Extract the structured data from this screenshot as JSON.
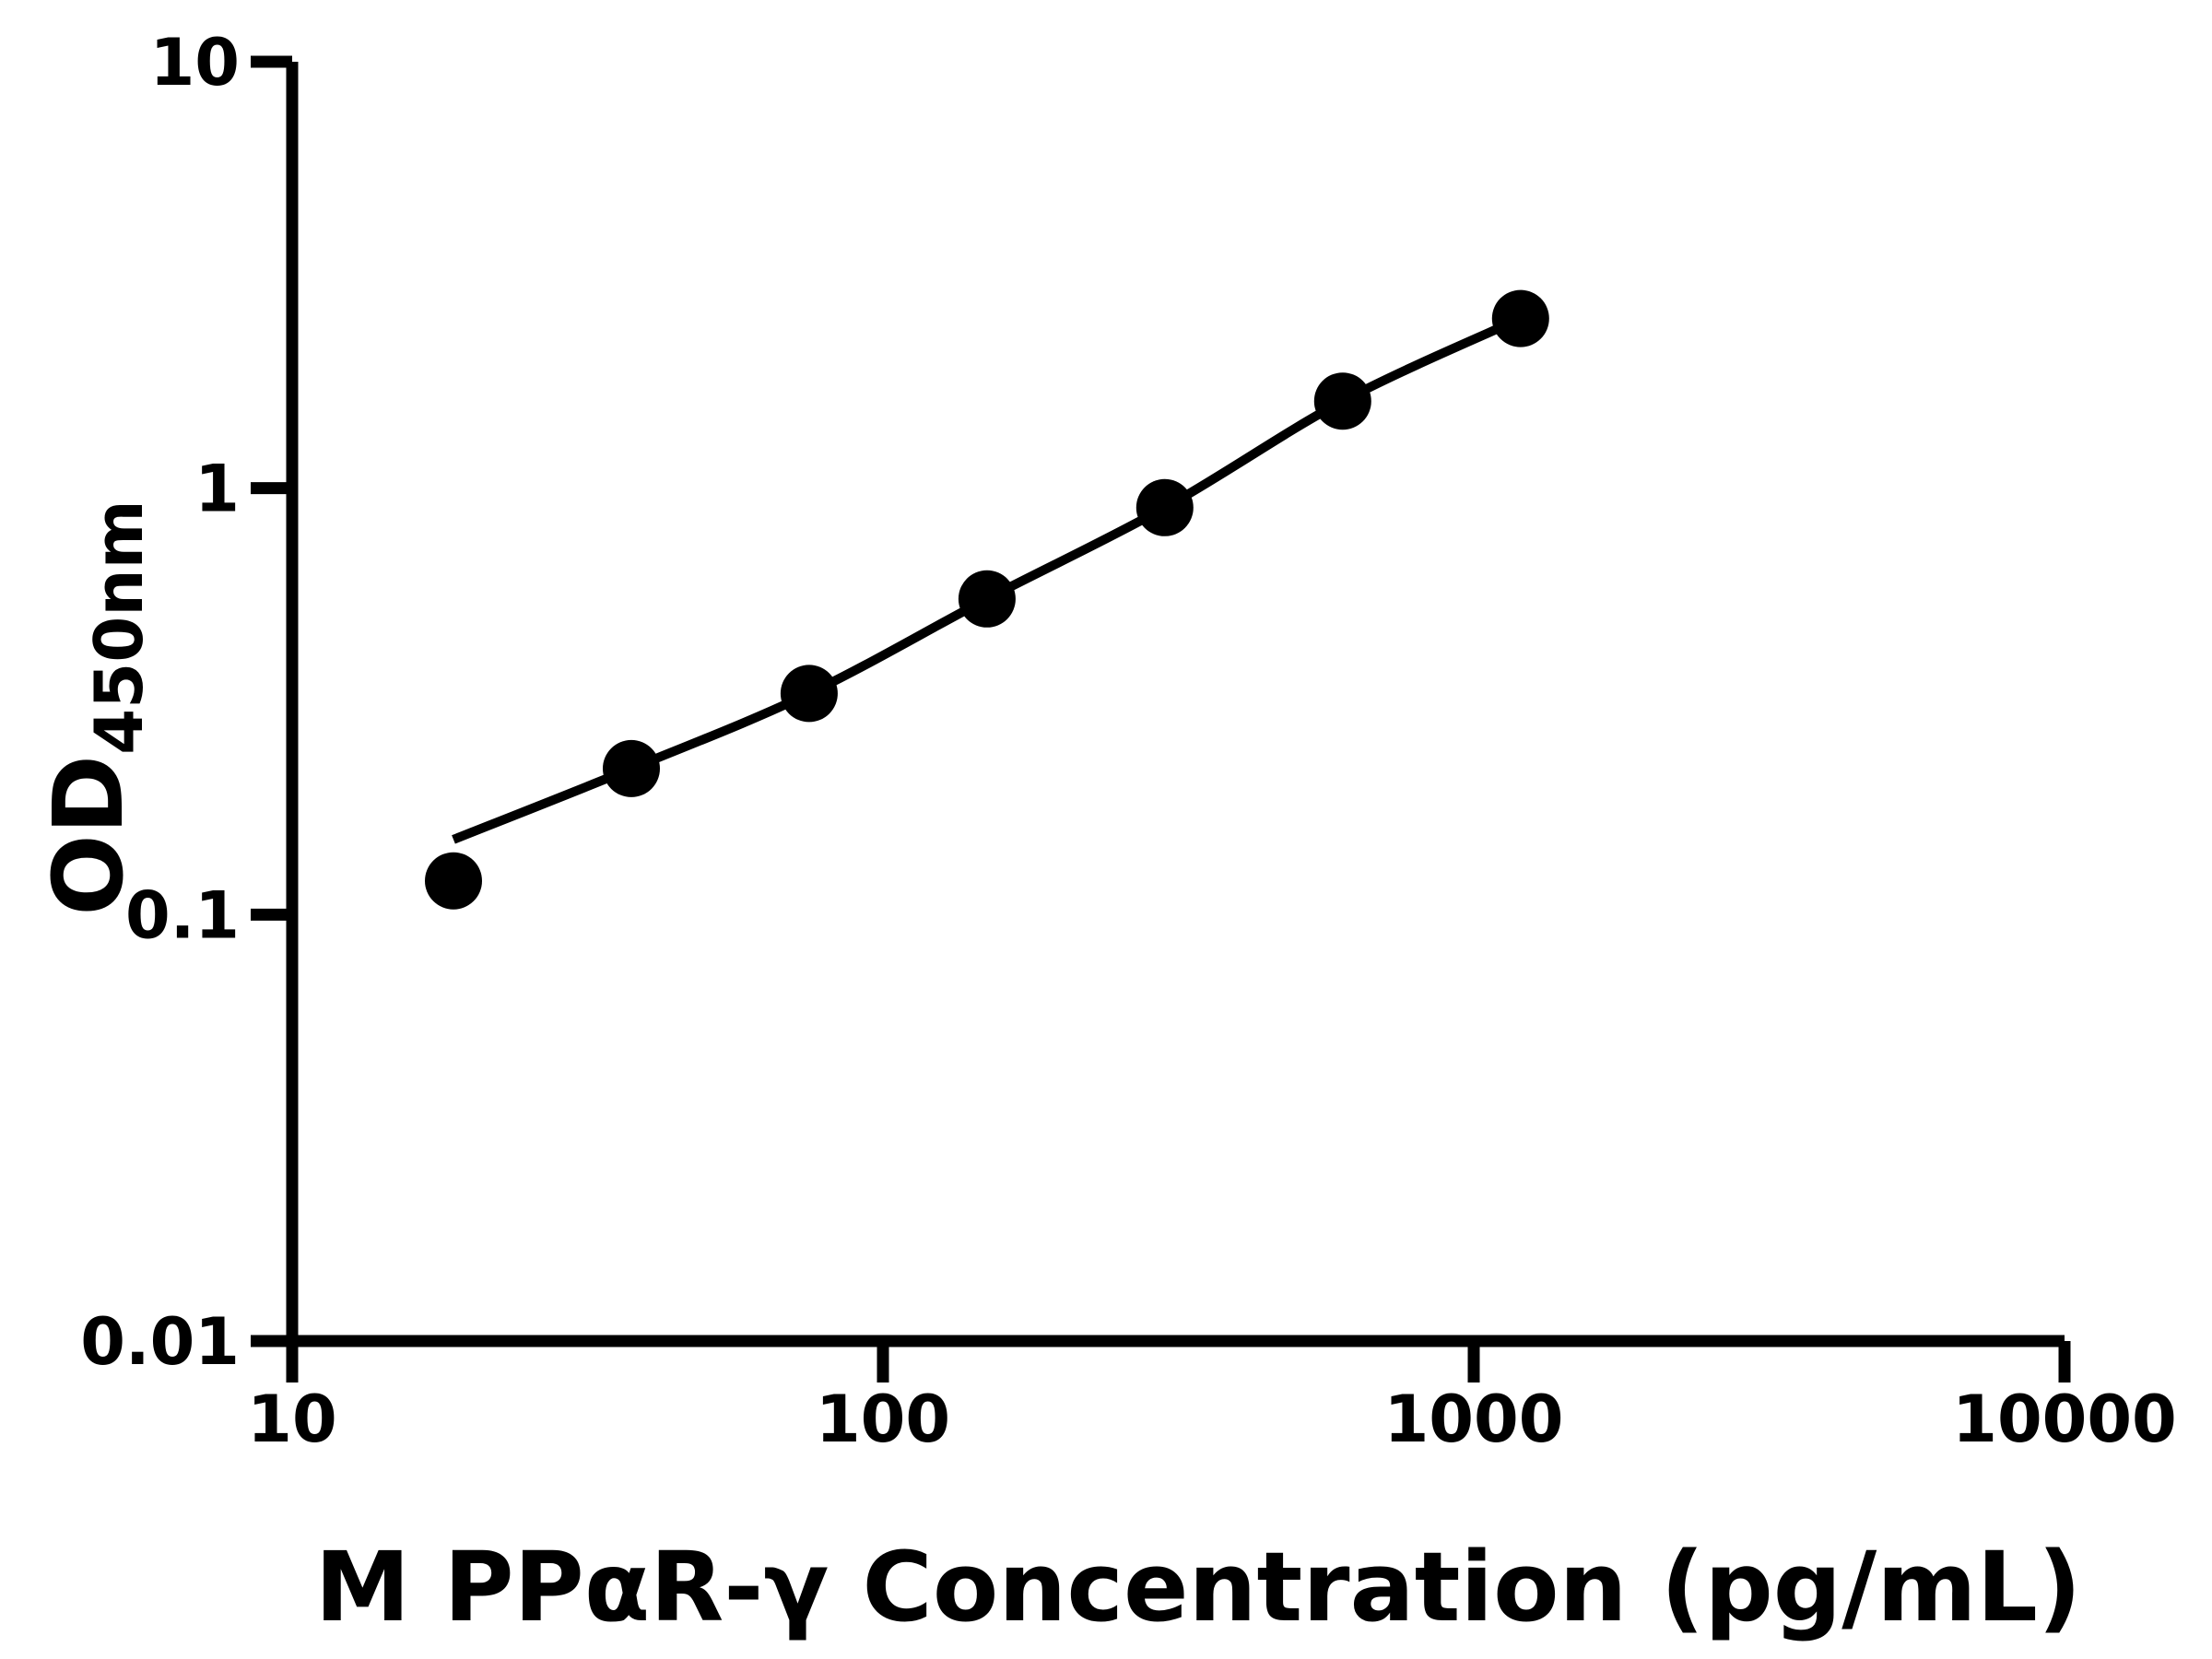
{
  "figure": {
    "background": "#ffffff",
    "axis_color": "#000000",
    "curve_color": "#000000",
    "marker_color": "#000000"
  },
  "chart_data": {
    "type": "scatter",
    "subtype": "line-through-points",
    "title": "",
    "xlabel": "M PPαR-γ Concentration (pg/mL)",
    "ylabel": "OD450nm",
    "ylabel_main": "OD",
    "ylabel_sub": "450nm",
    "x_scale": "log",
    "y_scale": "log",
    "xlim": [
      10,
      10000
    ],
    "ylim": [
      0.01,
      10
    ],
    "x_tick_labels": [
      "10",
      "100",
      "1000",
      "10000"
    ],
    "y_tick_labels": [
      "0.01",
      "0.1",
      "1",
      "10"
    ],
    "grid": false,
    "legend_position": "none",
    "points": [
      {
        "x": 18.75,
        "y": 0.12
      },
      {
        "x": 37.5,
        "y": 0.22
      },
      {
        "x": 75,
        "y": 0.33
      },
      {
        "x": 150,
        "y": 0.55
      },
      {
        "x": 300,
        "y": 0.9
      },
      {
        "x": 600,
        "y": 1.6
      },
      {
        "x": 1200,
        "y": 2.5
      }
    ],
    "fit_curve_anchors": [
      {
        "x": 18.75,
        "y": 0.15
      },
      {
        "x": 37.5,
        "y": 0.22
      },
      {
        "x": 75,
        "y": 0.33
      },
      {
        "x": 150,
        "y": 0.55
      },
      {
        "x": 300,
        "y": 0.9
      },
      {
        "x": 600,
        "y": 1.6
      },
      {
        "x": 1200,
        "y": 2.5
      }
    ]
  }
}
